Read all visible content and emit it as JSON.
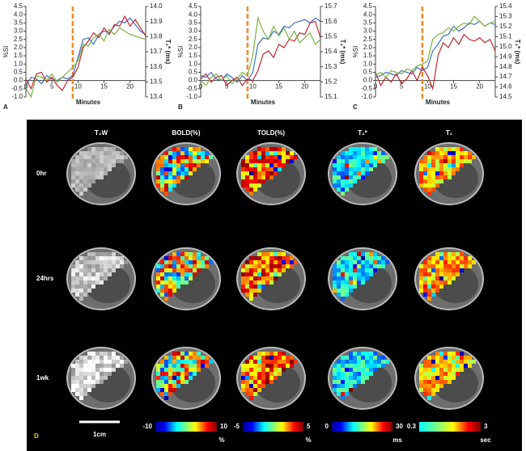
{
  "chart_data": [
    {
      "type": "line",
      "panel_label": "A",
      "xlabel": "Minutes",
      "ylabel": "%SI",
      "y2label": "T₂* (ms)",
      "x": [
        0,
        1,
        2,
        3,
        4,
        5,
        6,
        7,
        8,
        9,
        10,
        11,
        12,
        13,
        14,
        15,
        16,
        17,
        18,
        19,
        20,
        21,
        22,
        23
      ],
      "series": [
        {
          "color": "#3d6fc4",
          "values": [
            -0.3,
            0.2,
            0.1,
            -0.2,
            0.3,
            0.1,
            0.0,
            0.2,
            0.1,
            0.3,
            1.4,
            2.5,
            2.6,
            2.2,
            2.8,
            3.0,
            2.9,
            3.3,
            3.6,
            3.5,
            3.8,
            3.4,
            3.0,
            2.8
          ]
        },
        {
          "color": "#c0282d",
          "values": [
            0.1,
            -0.5,
            0.4,
            0.5,
            -0.1,
            0.2,
            -0.3,
            -0.6,
            0.0,
            0.2,
            0.8,
            2.0,
            2.4,
            2.9,
            2.6,
            3.2,
            2.8,
            3.4,
            3.3,
            3.9,
            3.3,
            3.7,
            3.2,
            2.7
          ]
        },
        {
          "color": "#7cb342",
          "values": [
            -0.5,
            -1.0,
            0.3,
            0.2,
            0.0,
            0.4,
            -0.1,
            0.2,
            0.5,
            0.8,
            1.2,
            2.2,
            2.1,
            2.6,
            2.8,
            2.4,
            3.1,
            2.8,
            3.2,
            3.0,
            2.8,
            2.7,
            2.6,
            2.5
          ]
        }
      ],
      "xlim": [
        0,
        23
      ],
      "xticks": [
        0,
        5,
        10,
        15,
        20
      ],
      "ylim": [
        -1,
        4.5
      ],
      "yticks": [
        {
          "value": -1,
          "label": "-1.0"
        },
        -0.5,
        {
          "value": 0,
          "label": "0.0"
        },
        0.5,
        {
          "value": 1,
          "label": "1.0"
        },
        1.5,
        {
          "value": 2,
          "label": "2.0"
        },
        2.5,
        {
          "value": 3,
          "label": "3.0"
        },
        3.5,
        {
          "value": 4,
          "label": "4.0"
        },
        4.5
      ],
      "y2lim": [
        13.4,
        14.0
      ],
      "y2ticks": [
        13.4,
        13.5,
        13.6,
        13.7,
        13.8,
        13.9,
        {
          "value": 14,
          "label": "14.0"
        }
      ],
      "marker_x": 9,
      "marker_color": "#f08a24"
    },
    {
      "type": "line",
      "panel_label": "B",
      "xlabel": "Minutes",
      "ylabel": "%SI",
      "y2label": "T₂* (ms)",
      "x": [
        0,
        1,
        2,
        3,
        4,
        5,
        6,
        7,
        8,
        9,
        10,
        11,
        12,
        13,
        14,
        15,
        16,
        17,
        18,
        19,
        20,
        21,
        22,
        23
      ],
      "series": [
        {
          "color": "#3d6fc4",
          "values": [
            0.3,
            0.2,
            0.5,
            0.1,
            0.0,
            0.4,
            0.2,
            -0.1,
            0.3,
            0.0,
            0.5,
            2.2,
            2.6,
            2.5,
            3.0,
            2.8,
            3.3,
            3.2,
            3.5,
            3.6,
            3.7,
            3.5,
            3.8,
            3.6
          ]
        },
        {
          "color": "#c0282d",
          "values": [
            0.1,
            0.4,
            -0.1,
            0.2,
            0.3,
            -0.3,
            0.0,
            0.2,
            -0.3,
            0.1,
            0.0,
            0.6,
            1.6,
            1.8,
            1.4,
            2.2,
            2.0,
            2.5,
            2.4,
            2.9,
            2.8,
            3.5,
            3.6,
            2.6
          ]
        },
        {
          "color": "#7cb342",
          "values": [
            0.0,
            -0.3,
            0.2,
            0.4,
            0.0,
            0.3,
            -0.2,
            0.1,
            0.5,
            0.3,
            1.5,
            3.8,
            3.0,
            2.5,
            3.3,
            2.7,
            3.2,
            2.5,
            3.0,
            2.3,
            2.6,
            2.9,
            2.2,
            2.5
          ]
        }
      ],
      "xlim": [
        0,
        23
      ],
      "xticks": [
        0,
        5,
        10,
        15,
        20
      ],
      "ylim": [
        -1,
        4.5
      ],
      "yticks": [
        {
          "value": -1,
          "label": "-1.0"
        },
        -0.5,
        {
          "value": 0,
          "label": "0.0"
        },
        0.5,
        {
          "value": 1,
          "label": "1.0"
        },
        1.5,
        {
          "value": 2,
          "label": "2.0"
        },
        2.5,
        {
          "value": 3,
          "label": "3.0"
        },
        3.5,
        {
          "value": 4,
          "label": "4.0"
        },
        4.5
      ],
      "y2lim": [
        15.1,
        15.7
      ],
      "y2ticks": [
        15.1,
        15.2,
        15.3,
        15.4,
        15.5,
        15.6,
        15.7
      ],
      "marker_x": 9,
      "marker_color": "#f08a24"
    },
    {
      "type": "line",
      "panel_label": "C",
      "xlabel": "Minutes",
      "ylabel": "%SI",
      "y2label": "T₂* (ms)",
      "x": [
        0,
        1,
        2,
        3,
        4,
        5,
        6,
        7,
        8,
        9,
        10,
        11,
        12,
        13,
        14,
        15,
        16,
        17,
        18,
        19,
        20,
        21,
        22,
        23
      ],
      "series": [
        {
          "color": "#3d6fc4",
          "values": [
            0.2,
            0.3,
            0.5,
            0.4,
            0.3,
            0.6,
            0.5,
            0.4,
            0.8,
            0.6,
            0.8,
            1.8,
            2.2,
            2.7,
            2.8,
            3.3,
            3.0,
            3.2,
            3.5,
            3.4,
            3.6,
            3.3,
            3.5,
            3.4
          ]
        },
        {
          "color": "#c0282d",
          "values": [
            0.5,
            -0.3,
            0.2,
            -0.1,
            0.4,
            -0.2,
            0.1,
            0.6,
            0.0,
            0.8,
            0.3,
            -0.5,
            1.5,
            2.3,
            2.0,
            2.6,
            2.2,
            2.8,
            2.5,
            2.4,
            2.6,
            2.3,
            2.5,
            1.8
          ]
        },
        {
          "color": "#7cb342",
          "values": [
            0.3,
            0.5,
            0.2,
            0.6,
            0.5,
            0.4,
            0.7,
            0.6,
            0.9,
            1.0,
            1.2,
            2.5,
            2.8,
            2.9,
            3.2,
            3.0,
            3.3,
            3.5,
            3.4,
            3.9,
            3.6,
            3.3,
            3.5,
            3.6
          ]
        }
      ],
      "xlim": [
        0,
        23
      ],
      "xticks": [
        0,
        5,
        10,
        15,
        20
      ],
      "ylim": [
        -1,
        4.5
      ],
      "yticks": [
        {
          "value": -1,
          "label": "-1.0"
        },
        -0.5,
        {
          "value": 0,
          "label": "0.0"
        },
        0.5,
        {
          "value": 1,
          "label": "1.0"
        },
        1.5,
        {
          "value": 2,
          "label": "2.0"
        },
        2.5,
        {
          "value": 3,
          "label": "3.0"
        },
        3.5,
        {
          "value": 4,
          "label": "4.0"
        },
        4.5
      ],
      "y2lim": [
        14.5,
        15.4
      ],
      "y2ticks": [
        14.5,
        14.6,
        14.7,
        14.8,
        14.9,
        {
          "value": 15,
          "label": "15.0"
        },
        15.1,
        15.2,
        15.3,
        15.4
      ],
      "marker_x": 9,
      "marker_color": "#f08a24"
    }
  ],
  "panel_d": {
    "label": "D",
    "columns": [
      "T₂W",
      "BOLD(%)",
      "TOLD(%)",
      "T₂*",
      "T₁"
    ],
    "rows": [
      "0hr",
      "24hrs",
      "1wk"
    ],
    "colorbars": [
      {
        "min": -10,
        "max": 10,
        "unit": "%"
      },
      {
        "min": -5,
        "max": 5,
        "unit": "%"
      },
      {
        "min": 0,
        "max": 30,
        "unit": "ms"
      },
      {
        "min": 0.3,
        "max": 3,
        "unit": "sec"
      }
    ],
    "scale_bar": "1cm"
  }
}
